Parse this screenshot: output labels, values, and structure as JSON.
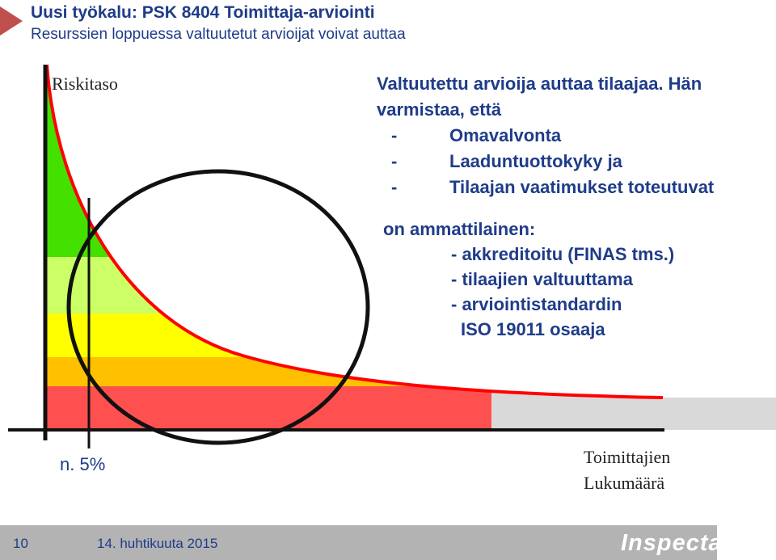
{
  "header": {
    "title": "Uusi työkalu: PSK 8404 Toimittaja-arviointi",
    "subtitle": "Resurssien loppuessa valtuutetut arvioijat voivat auttaa"
  },
  "diagram": {
    "y_label": "Riskitaso",
    "x_label_line1": "Toimittajien",
    "x_label_line2": "Lukumäärä",
    "marker_label": "n. 5%",
    "colors": {
      "green": "#44e000",
      "light_green": "#ccff66",
      "yellow": "#ffff00",
      "orange": "#ffc000",
      "red": "#ff5050",
      "gray": "#d9d9d9",
      "curve": "#ff0000",
      "accent": "#c00000",
      "text": "#1f3c88"
    }
  },
  "content": {
    "intro_line1": "Valtuutettu arvioija auttaa tilaajaa. Hän",
    "intro_line2": "varmistaa, että",
    "bullets": [
      {
        "dash": "-",
        "text": "Omavalvonta"
      },
      {
        "dash": "-",
        "text": "Laaduntuottokyky ja"
      },
      {
        "dash": "-",
        "text": "Tilaajan vaatimukset toteutuvat"
      }
    ],
    "qual_heading": "on ammattilainen:",
    "qual_items": [
      "- akkreditoitu (FINAS tms.)",
      "- tilaajien valtuuttama",
      "- arviointistandardin"
    ],
    "qual_item_cont": "ISO 19011 osaaja"
  },
  "footer": {
    "page_number": "10",
    "date": "14. huhtikuuta 2015",
    "brand": "Inspecta"
  }
}
